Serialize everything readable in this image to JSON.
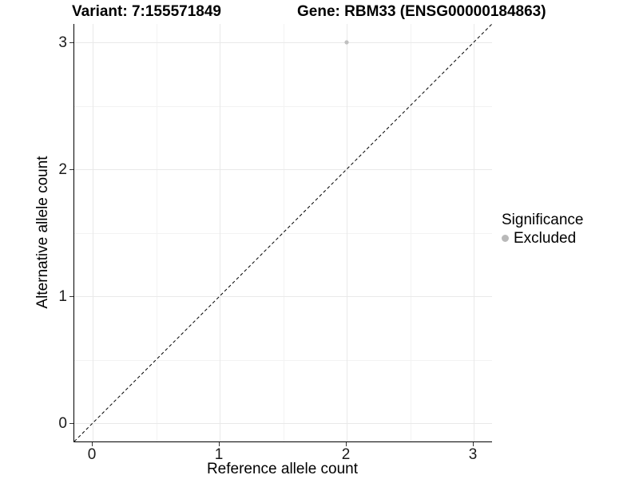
{
  "titles": {
    "left": "Variant: 7:155571849",
    "right": "Gene: RBM33 (ENSG00000184863)"
  },
  "axes": {
    "x_label": "Reference allele count",
    "y_label": "Alternative allele count",
    "x_ticks": [
      "0",
      "1",
      "2",
      "3"
    ],
    "y_ticks": [
      "0",
      "1",
      "2",
      "3"
    ]
  },
  "legend": {
    "title": "Significance",
    "items": [
      {
        "label": "Excluded",
        "color": "#b9b9b9"
      }
    ]
  },
  "colors": {
    "grid_major": "#e9e9e9",
    "grid_minor": "#f2f2f2",
    "axis_line": "#000000",
    "tick_mark": "#333333",
    "point": "#c0c0c0",
    "reference_line": "#000000"
  },
  "chart_data": {
    "type": "scatter",
    "title": "Variant: 7:155571849 | Gene: RBM33 (ENSG00000184863)",
    "xlabel": "Reference allele count",
    "ylabel": "Alternative allele count",
    "xlim": [
      -0.145,
      3.145
    ],
    "ylim": [
      -0.145,
      3.145
    ],
    "x_ticks": [
      0,
      1,
      2,
      3
    ],
    "y_ticks": [
      0,
      1,
      2,
      3
    ],
    "grid": "major+minor",
    "legend_position": "right",
    "series": [
      {
        "name": "Excluded",
        "color": "#c0c0c0",
        "marker": "circle",
        "points": [
          {
            "x": 2,
            "y": 3
          }
        ]
      }
    ],
    "reference_line": {
      "slope": 1,
      "intercept": 0,
      "style": "dashed",
      "color": "#000000"
    }
  }
}
